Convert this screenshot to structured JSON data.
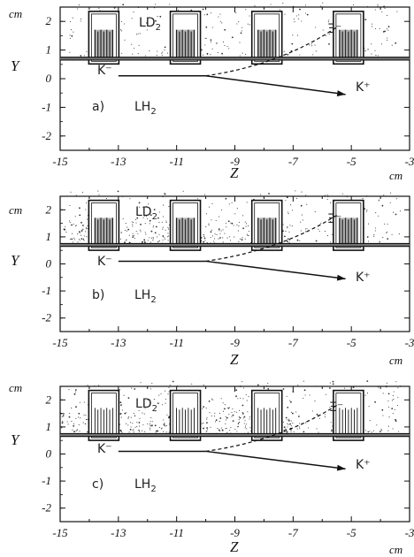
{
  "figure": {
    "panels": [
      {
        "id": "a",
        "panel_label": "a)",
        "target_upper": "LD",
        "target_upper_sub": "2",
        "target_lower": "LH",
        "target_lower_sub": "2",
        "beam_particle": "K⁻",
        "out_particle": "K⁺",
        "hyperon": "Ξ⁻",
        "z_axis_title": "Z",
        "z_unit": "cm",
        "y_axis_title": "Y",
        "y_unit": "cm"
      },
      {
        "id": "b",
        "panel_label": "b)",
        "target_upper": "LD",
        "target_upper_sub": "2",
        "target_lower": "LH",
        "target_lower_sub": "2",
        "beam_particle": "K⁻",
        "out_particle": "K⁺",
        "hyperon": "Ξ⁻",
        "z_axis_title": "Z",
        "z_unit": "cm",
        "y_axis_title": "Y",
        "y_unit": "cm"
      },
      {
        "id": "c",
        "panel_label": "c)",
        "target_upper": "LD",
        "target_upper_sub": "2",
        "target_lower": "LH",
        "target_lower_sub": "2",
        "beam_particle": "K⁻",
        "out_particle": "K⁺",
        "hyperon": "Ξ⁻",
        "z_axis_title": "Z",
        "z_unit": "cm",
        "y_axis_title": "Y",
        "y_unit": "cm"
      }
    ],
    "colors": {
      "ink": "#111111",
      "paper": "#ffffff",
      "dots": "#333333"
    }
  },
  "chart_data": {
    "type": "scatter",
    "x_ticks": [
      -15,
      -13,
      -11,
      -9,
      -7,
      -5,
      -3
    ],
    "y_ticks": [
      2,
      1,
      0,
      -1,
      -2
    ],
    "xlim": [
      -15,
      -3
    ],
    "ylim": [
      -2.5,
      2.5
    ],
    "xlabel": "Z",
    "ylabel": "Y",
    "grid": false,
    "detector_modules_z_center": [
      -13.5,
      -10.7,
      -7.9,
      -5.1
    ],
    "beam_axis_y": 0.1,
    "k_minus_track": {
      "z": [
        -13,
        -10
      ],
      "y": [
        0.1,
        0.1
      ]
    },
    "k_plus_track": {
      "z": [
        -10,
        -5.2
      ],
      "y": [
        0.1,
        -0.55
      ]
    },
    "xi_minus_track": {
      "z": [
        -10,
        -5.5
      ],
      "y": [
        0.1,
        1.8
      ]
    },
    "divider_y": 0.7
  }
}
